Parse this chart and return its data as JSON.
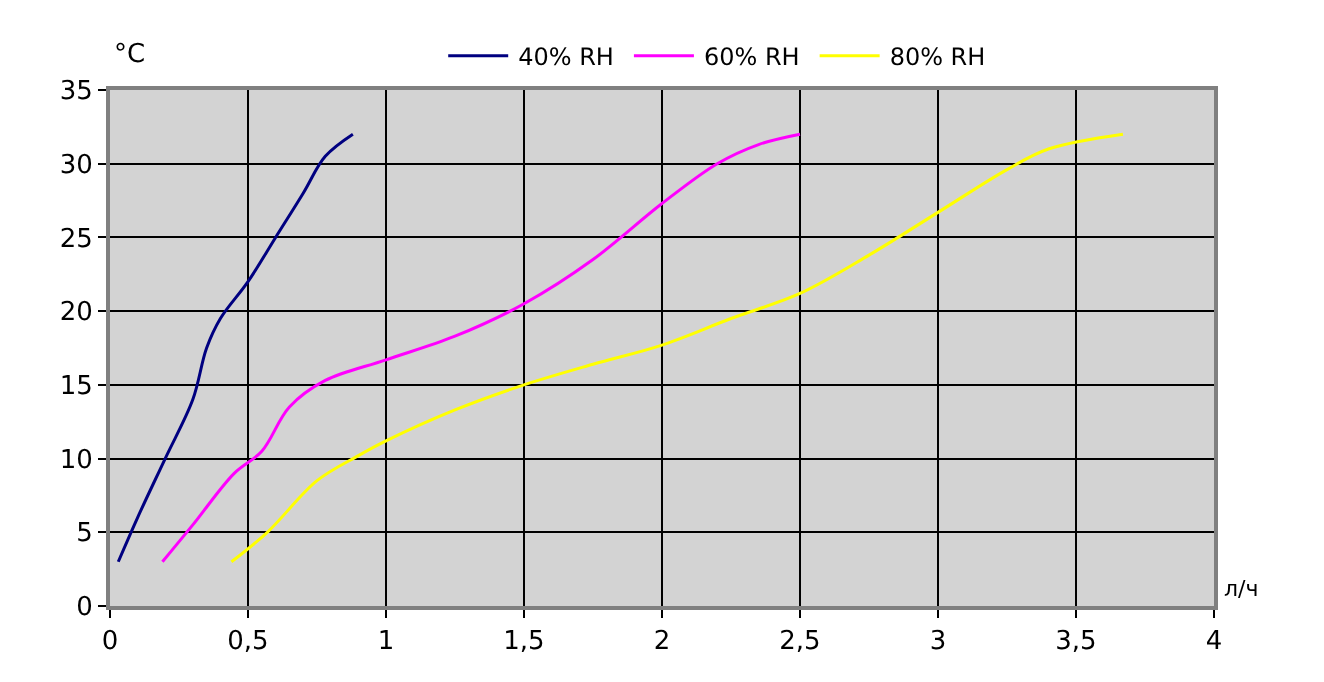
{
  "chart_data": {
    "type": "line",
    "xlabel": "л/ч",
    "ylabel": "°C",
    "legend": "top",
    "grid": true,
    "marker": "none",
    "line_style": "solid",
    "xlim": [
      0,
      4
    ],
    "xticks": [
      {
        "value": 0,
        "label": "0"
      },
      {
        "value": 0.5,
        "label": "0,5"
      },
      {
        "value": 1,
        "label": "1"
      },
      {
        "value": 1.5,
        "label": "1,5"
      },
      {
        "value": 2,
        "label": "2"
      },
      {
        "value": 2.5,
        "label": "2,5"
      },
      {
        "value": 3,
        "label": "3"
      },
      {
        "value": 3.5,
        "label": "3,5"
      },
      {
        "value": 4,
        "label": "4"
      }
    ],
    "ylim": [
      0,
      35
    ],
    "yticks": [
      0,
      5,
      10,
      15,
      20,
      25,
      30,
      35
    ],
    "series": [
      {
        "name": "40% RH",
        "color": "#000080",
        "x": [
          0.03,
          0.1,
          0.2,
          0.3,
          0.35,
          0.4,
          0.5,
          0.6,
          0.7,
          0.78,
          0.88
        ],
        "values": [
          3,
          6,
          10,
          14,
          17.5,
          19.5,
          22,
          25,
          28,
          30.5,
          32
        ]
      },
      {
        "name": "60% RH",
        "color": "#ff00ff",
        "x": [
          0.19,
          0.3,
          0.45,
          0.55,
          0.65,
          0.78,
          1,
          1.25,
          1.5,
          1.75,
          2,
          2.2,
          2.35,
          2.5
        ],
        "values": [
          3,
          5.5,
          9,
          10.5,
          13.5,
          15.3,
          16.7,
          18.3,
          20.5,
          23.5,
          27.3,
          30,
          31.3,
          32
        ]
      },
      {
        "name": "80% RH",
        "color": "#ffff00",
        "x": [
          0.44,
          0.57,
          0.75,
          0.9,
          1,
          1.25,
          1.5,
          1.75,
          2,
          2.25,
          2.5,
          2.75,
          3,
          3.25,
          3.4,
          3.67
        ],
        "values": [
          3,
          5,
          8.5,
          10.2,
          11.2,
          13.3,
          15,
          16.4,
          17.7,
          19.5,
          21.2,
          23.8,
          26.7,
          29.6,
          31,
          32
        ]
      }
    ]
  }
}
